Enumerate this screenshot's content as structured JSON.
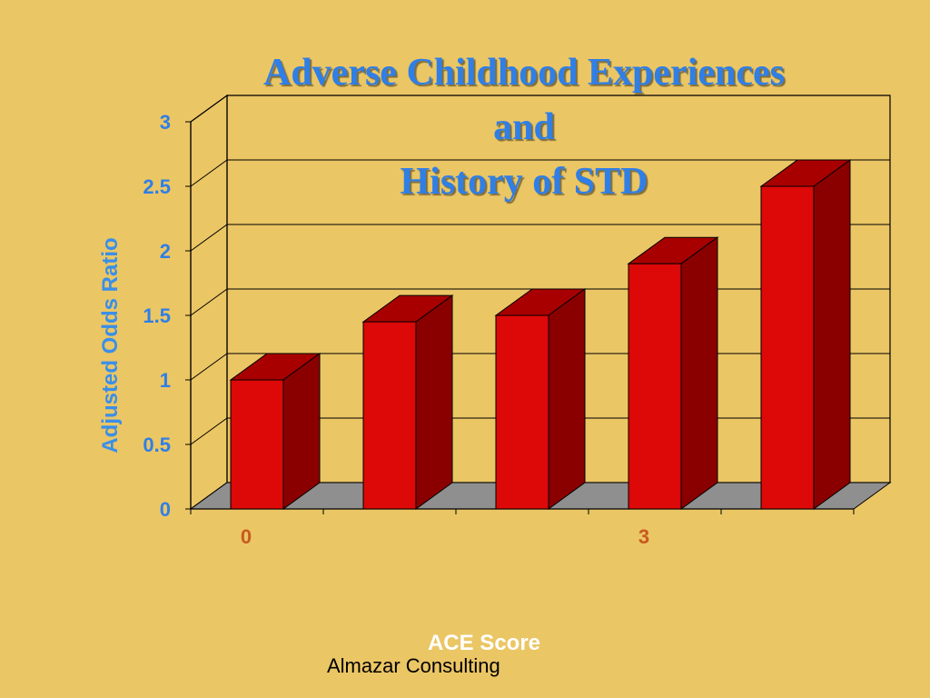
{
  "chart_data": {
    "type": "bar",
    "title": [
      "Adverse Childhood Experiences",
      "and",
      "History of STD"
    ],
    "xlabel": "ACE Score",
    "ylabel": "Adjusted Odds Ratio",
    "ylim": [
      0,
      3
    ],
    "yticks": [
      "0",
      "0.5",
      "1",
      "1.5",
      "2",
      "2.5",
      "3"
    ],
    "x_tick_labels": [
      {
        "position": 0,
        "label": "0"
      },
      {
        "position": 3,
        "label": "3"
      }
    ],
    "values": [
      1.0,
      1.45,
      1.5,
      1.9,
      2.5
    ],
    "grid": true,
    "three_d": true,
    "colors": {
      "bar_front": "#dd0808",
      "bar_side": "#8a0000",
      "bar_top": "#a80000",
      "floor": "#8f8f8f"
    }
  },
  "footer": {
    "credit": "Almazar Consulting"
  }
}
